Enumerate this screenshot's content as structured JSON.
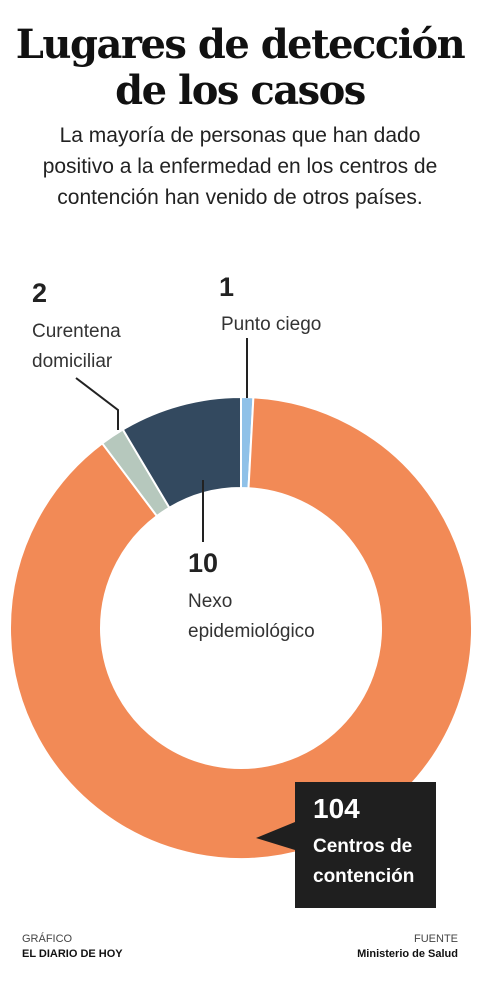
{
  "title_line1": "Lugares de detección",
  "title_line2": "de los casos",
  "subtitle": "La mayoría de personas que han dado positivo a la enfermedad en los centros de contención han venido de otros países.",
  "chart_data": {
    "type": "pie",
    "donut": true,
    "categories": [
      "Punto ciego",
      "Centros de contención",
      "Curentena domiciliar",
      "Nexo epidemiológico"
    ],
    "values": [
      1,
      104,
      2,
      10
    ],
    "colors": [
      "#8fc1e8",
      "#f28a56",
      "#b6c8bd",
      "#33495f"
    ],
    "labels": [
      {
        "value": "1",
        "lines": [
          "Punto ciego"
        ]
      },
      {
        "value": "104",
        "lines": [
          "Centros de",
          "contención"
        ]
      },
      {
        "value": "2",
        "lines": [
          "Curentena",
          "domiciliar"
        ]
      },
      {
        "value": "10",
        "lines": [
          "Nexo",
          "epidemiológico"
        ]
      }
    ]
  },
  "credits": {
    "left_label": "GRÁFICO",
    "left_value": "EL DIARIO DE HOY",
    "right_label": "FUENTE",
    "right_value": "Ministerio de Salud"
  }
}
